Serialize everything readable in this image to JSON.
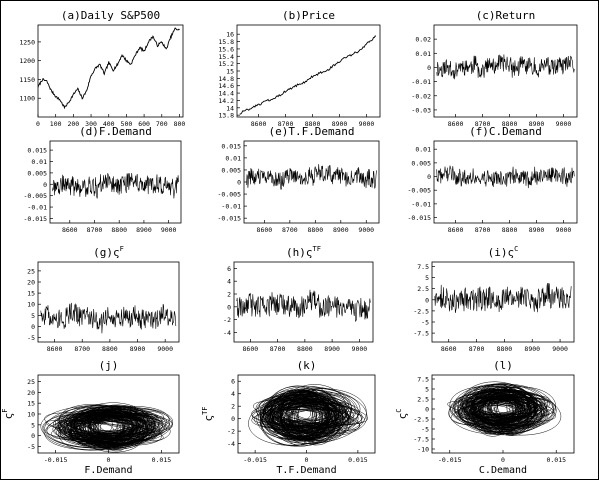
{
  "figure": {
    "background": "#ffffff",
    "ink": "#000000",
    "frame": "#000000"
  },
  "chart_data": [
    {
      "id": "a",
      "type": "line",
      "title": "(a)Daily S&P500",
      "xlabel": "",
      "ylabel": "",
      "xlim": [
        0,
        820
      ],
      "ylim": [
        1050,
        1295
      ],
      "xticks": [
        0,
        100,
        200,
        300,
        400,
        500,
        600,
        700,
        800
      ],
      "xticklabels": [
        "0",
        "100",
        "200",
        "300",
        "400",
        "500",
        "600",
        "700",
        "800"
      ],
      "yticks": [
        1100,
        1150,
        1200,
        1250
      ],
      "yticklabels": [
        "1100",
        "1150",
        "1200",
        "1250"
      ],
      "series": [
        {
          "style": "line",
          "x": [
            0,
            25,
            50,
            75,
            100,
            125,
            150,
            175,
            200,
            225,
            250,
            275,
            300,
            325,
            350,
            375,
            400,
            425,
            450,
            475,
            500,
            525,
            550,
            575,
            600,
            625,
            650,
            675,
            700,
            725,
            750,
            775,
            800
          ],
          "y": [
            1130,
            1150,
            1145,
            1120,
            1105,
            1095,
            1075,
            1090,
            1110,
            1125,
            1100,
            1120,
            1160,
            1180,
            1190,
            1165,
            1195,
            1175,
            1190,
            1215,
            1200,
            1190,
            1215,
            1235,
            1225,
            1250,
            1265,
            1240,
            1250,
            1230,
            1262,
            1285,
            1282
          ]
        }
      ]
    },
    {
      "id": "b",
      "type": "line",
      "title": "(b)Price",
      "xlabel": "",
      "ylabel": "",
      "xlim": [
        8520,
        9050
      ],
      "ylim": [
        13.75,
        16.25
      ],
      "xticks": [
        8600,
        8700,
        8800,
        8900,
        9000
      ],
      "xticklabels": [
        "8600",
        "8700",
        "8800",
        "8900",
        "9000"
      ],
      "yticks": [
        13.8,
        14,
        14.2,
        14.4,
        14.6,
        14.8,
        15,
        15.2,
        15.4,
        15.6,
        15.8,
        16
      ],
      "yticklabels": [
        "13.8",
        "14",
        "14.2",
        "14.4",
        "14.6",
        "14.8",
        "15",
        "15.2",
        "15.4",
        "15.6",
        "15.8",
        "16"
      ],
      "series": [
        {
          "style": "line",
          "x": [
            8530,
            8560,
            8590,
            8620,
            8650,
            8680,
            8710,
            8740,
            8770,
            8800,
            8830,
            8860,
            8890,
            8920,
            8950,
            8980,
            9010,
            9035
          ],
          "y": [
            13.85,
            13.95,
            14.05,
            14.15,
            14.25,
            14.35,
            14.5,
            14.6,
            14.7,
            14.85,
            14.95,
            15.05,
            15.2,
            15.35,
            15.45,
            15.6,
            15.8,
            15.95
          ]
        }
      ]
    },
    {
      "id": "c",
      "type": "line",
      "title": "(c)Return",
      "xlabel": "",
      "ylabel": "",
      "xlim": [
        8520,
        9050
      ],
      "ylim": [
        -0.035,
        0.03
      ],
      "xticks": [
        8600,
        8700,
        8800,
        8900,
        9000
      ],
      "xticklabels": [
        "8600",
        "8700",
        "8800",
        "8900",
        "9000"
      ],
      "yticks": [
        -0.03,
        -0.02,
        -0.01,
        0,
        0.01,
        0.02
      ],
      "yticklabels": [
        "-0.03",
        "-0.02",
        "-0.01",
        "0",
        "0.01",
        "0.02"
      ],
      "series": [
        {
          "style": "noise",
          "x": [
            8530,
            9040
          ],
          "center": 0,
          "amplitude": 0.012,
          "count": 300,
          "seed": 11
        }
      ]
    },
    {
      "id": "d",
      "type": "line",
      "title": "(d)F.Demand",
      "xlabel": "",
      "ylabel": "",
      "xlim": [
        8520,
        9050
      ],
      "ylim": [
        -0.017,
        0.019
      ],
      "xticks": [
        8600,
        8700,
        8800,
        8900,
        9000
      ],
      "xticklabels": [
        "8600",
        "8700",
        "8800",
        "8900",
        "9000"
      ],
      "yticks": [
        -0.015,
        -0.01,
        -0.005,
        0,
        0.005,
        0.01,
        0.015
      ],
      "yticklabels": [
        "-0.015",
        "-0.01",
        "-0.005",
        "0",
        "0.005",
        "0.01",
        "0.015"
      ],
      "series": [
        {
          "style": "noise",
          "x": [
            8530,
            9040
          ],
          "center": 0,
          "amplitude": 0.008,
          "count": 300,
          "seed": 21
        }
      ]
    },
    {
      "id": "e",
      "type": "line",
      "title": "(e)T.F.Demand",
      "xlabel": "",
      "ylabel": "",
      "xlim": [
        8520,
        9050
      ],
      "ylim": [
        -0.017,
        0.017
      ],
      "xticks": [
        8600,
        8700,
        8800,
        8900,
        9000
      ],
      "xticklabels": [
        "8600",
        "8700",
        "8800",
        "8900",
        "9000"
      ],
      "yticks": [
        -0.015,
        -0.01,
        -0.005,
        0,
        0.005,
        0.01,
        0.015
      ],
      "yticklabels": [
        "-0.015",
        "-0.01",
        "-0.005",
        "0",
        "0.005",
        "0.01",
        "0.015"
      ],
      "series": [
        {
          "style": "noise",
          "x": [
            8530,
            9040
          ],
          "center": 0.002,
          "amplitude": 0.007,
          "count": 300,
          "seed": 31
        }
      ]
    },
    {
      "id": "f",
      "type": "line",
      "title": "(f)C.Demand",
      "xlabel": "",
      "ylabel": "",
      "xlim": [
        8520,
        9050
      ],
      "ylim": [
        -0.017,
        0.013
      ],
      "xticks": [
        8600,
        8700,
        8800,
        8900,
        9000
      ],
      "xticklabels": [
        "8600",
        "8700",
        "8800",
        "8900",
        "9000"
      ],
      "yticks": [
        -0.015,
        -0.01,
        -0.005,
        0,
        0.005,
        0.01
      ],
      "yticklabels": [
        "-0.015",
        "-0.01",
        "-0.005",
        "0",
        "0.005",
        "0.01"
      ],
      "series": [
        {
          "style": "noise",
          "x": [
            8530,
            9040
          ],
          "center": 0,
          "amplitude": 0.006,
          "count": 300,
          "seed": 41
        }
      ]
    },
    {
      "id": "g",
      "type": "line",
      "title": "(g)ς",
      "title_superscript": "F",
      "xlabel": "",
      "ylabel": "",
      "xlim": [
        8540,
        9050
      ],
      "ylim": [
        -7,
        29
      ],
      "xticks": [
        8600,
        8700,
        8800,
        8900,
        9000
      ],
      "xticklabels": [
        "8600",
        "8700",
        "8800",
        "8900",
        "9000"
      ],
      "yticks": [
        -5,
        0,
        5,
        10,
        15,
        20,
        25
      ],
      "yticklabels": [
        "-5",
        "0",
        "5",
        "10",
        "15",
        "20",
        "25"
      ],
      "series": [
        {
          "style": "noise",
          "x": [
            8550,
            9040
          ],
          "center": 4,
          "amplitude": 9,
          "count": 280,
          "seed": 51
        }
      ]
    },
    {
      "id": "h",
      "type": "line",
      "title": "(h)ς",
      "title_superscript": "TF",
      "xlabel": "",
      "ylabel": "",
      "xlim": [
        8540,
        9050
      ],
      "ylim": [
        -5.5,
        7
      ],
      "xticks": [
        8600,
        8700,
        8800,
        8900,
        9000
      ],
      "xticklabels": [
        "8600",
        "8700",
        "8800",
        "8900",
        "9000"
      ],
      "yticks": [
        -4,
        -2,
        0,
        2,
        4,
        6
      ],
      "yticklabels": [
        "-4",
        "-2",
        "0",
        "2",
        "4",
        "6"
      ],
      "series": [
        {
          "style": "noise",
          "x": [
            8550,
            9040
          ],
          "center": 0,
          "amplitude": 3.5,
          "count": 300,
          "seed": 61
        }
      ]
    },
    {
      "id": "i",
      "type": "line",
      "title": "(i)ς",
      "title_superscript": "C",
      "xlabel": "",
      "ylabel": "",
      "xlim": [
        8540,
        9050
      ],
      "ylim": [
        -9.5,
        8.5
      ],
      "xticks": [
        8600,
        8700,
        8800,
        8900,
        9000
      ],
      "xticklabels": [
        "8600",
        "8700",
        "8800",
        "8900",
        "9000"
      ],
      "yticks": [
        -7.5,
        -5,
        -2.5,
        0,
        2.5,
        5,
        7.5
      ],
      "yticklabels": [
        "-7.5",
        "-5",
        "-2.5",
        "0",
        "2.5",
        "5",
        "7.5"
      ],
      "series": [
        {
          "style": "noise",
          "x": [
            8550,
            9040
          ],
          "center": 0,
          "amplitude": 5,
          "count": 300,
          "seed": 71
        }
      ]
    },
    {
      "id": "j",
      "type": "line",
      "title": "(j)",
      "xlabel": "F.Demand",
      "ylabel": "ς",
      "ylabel_superscript": "F",
      "xlim": [
        -0.02,
        0.02
      ],
      "ylim": [
        -8,
        28
      ],
      "xticks": [
        -0.015,
        0,
        0.015
      ],
      "xticklabels": [
        "-0.015",
        "0",
        "0.015"
      ],
      "yticks": [
        -5,
        0,
        5,
        10,
        15,
        20,
        25
      ],
      "yticklabels": [
        "-5",
        "0",
        "5",
        "10",
        "15",
        "20",
        "25"
      ],
      "series": [
        {
          "style": "loops",
          "center": [
            0,
            4
          ],
          "spread": [
            0.015,
            9
          ],
          "count": 140,
          "seed": 81
        }
      ]
    },
    {
      "id": "k",
      "type": "line",
      "title": "(k)",
      "xlabel": "T.F.Demand",
      "ylabel": "ς",
      "ylabel_superscript": "TF",
      "xlim": [
        -0.02,
        0.02
      ],
      "ylim": [
        -5.5,
        7
      ],
      "xticks": [
        -0.015,
        0,
        0.015
      ],
      "xticklabels": [
        "-0.015",
        "0",
        "0.015"
      ],
      "yticks": [
        -4,
        -2,
        0,
        2,
        4,
        6
      ],
      "yticklabels": [
        "-4",
        "-2",
        "0",
        "2",
        "4",
        "6"
      ],
      "series": [
        {
          "style": "loops",
          "center": [
            0,
            0.5
          ],
          "spread": [
            0.014,
            4
          ],
          "count": 140,
          "seed": 91
        }
      ]
    },
    {
      "id": "l",
      "type": "line",
      "title": "(l)",
      "xlabel": "C.Demand",
      "ylabel": "ς",
      "ylabel_superscript": "C",
      "xlim": [
        -0.02,
        0.02
      ],
      "ylim": [
        -11,
        8.5
      ],
      "xticks": [
        -0.015,
        0,
        0.015
      ],
      "xticklabels": [
        "-0.015",
        "0",
        "0.015"
      ],
      "yticks": [
        -10,
        -7.5,
        -5,
        -2.5,
        0,
        2.5,
        5,
        7.5
      ],
      "yticklabels": [
        "-10",
        "-7.5",
        "-5",
        "-2.5",
        "0",
        "2.5",
        "5",
        "7.5"
      ],
      "series": [
        {
          "style": "loops",
          "center": [
            0,
            0
          ],
          "spread": [
            0.013,
            5.5
          ],
          "count": 140,
          "seed": 101
        }
      ]
    }
  ]
}
